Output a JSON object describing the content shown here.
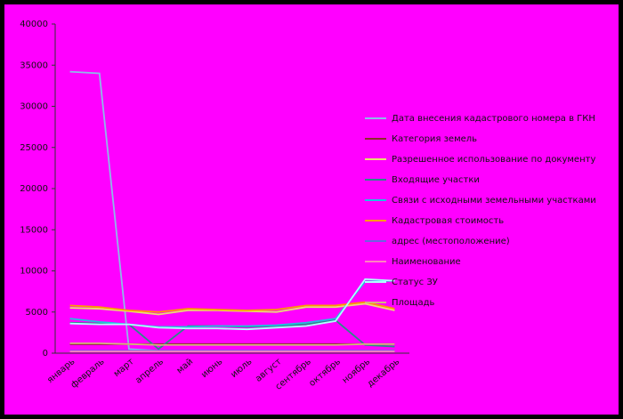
{
  "chart_data": {
    "type": "line",
    "categories": [
      "январь",
      "февраль",
      "март",
      "апрель",
      "май",
      "июнь",
      "июль",
      "август",
      "сентябрь",
      "октябрь",
      "ноябрь",
      "декабрь"
    ],
    "ylim": [
      0,
      40000
    ],
    "yticks": [
      0,
      5000,
      10000,
      15000,
      20000,
      25000,
      30000,
      35000,
      40000
    ],
    "grid": false,
    "legend": "right",
    "series": [
      {
        "name": "Дата внесения кадастрового номера в ГКН",
        "color": "#8fb8e8",
        "values": [
          34200,
          34000,
          500,
          300,
          300,
          300,
          300,
          300,
          300,
          300,
          300,
          300
        ]
      },
      {
        "name": "Категория земель",
        "color": "#8b2b2b",
        "values": [
          1100,
          1100,
          1100,
          1100,
          1100,
          1100,
          1100,
          1100,
          1100,
          1100,
          1100,
          1100
        ]
      },
      {
        "name": "Разрешенное использование по документу",
        "color": "#e8e070",
        "values": [
          5500,
          5400,
          5100,
          4700,
          5200,
          5200,
          5100,
          5000,
          5600,
          5600,
          6000,
          5200
        ]
      },
      {
        "name": "Входящие участки",
        "color": "#2a8a8a",
        "values": [
          3700,
          3600,
          3500,
          500,
          3300,
          3300,
          3200,
          3300,
          3500,
          4000,
          1000,
          800
        ]
      },
      {
        "name": "Связи с исходными земельными участками",
        "color": "#20c0e0",
        "values": [
          4200,
          3800,
          3500,
          3200,
          3200,
          3300,
          3300,
          3400,
          3700,
          4200,
          8700,
          8800
        ]
      },
      {
        "name": "Кадастровая стоимость",
        "color": "#ff9900",
        "values": [
          5800,
          5600,
          5200,
          5000,
          5400,
          5300,
          5200,
          5300,
          5800,
          5800,
          6200,
          5400
        ]
      },
      {
        "name": "адрес (местоположение)",
        "color": "#7060e0",
        "values": [
          300,
          300,
          300,
          300,
          300,
          300,
          300,
          300,
          300,
          300,
          300,
          300
        ]
      },
      {
        "name": "Наименование",
        "color": "#ff80c0",
        "values": [
          200,
          200,
          200,
          200,
          200,
          200,
          200,
          200,
          200,
          200,
          200,
          200
        ]
      },
      {
        "name": "Статус ЗУ",
        "color": "#b0ffff",
        "values": [
          3600,
          3500,
          3500,
          3100,
          3000,
          3000,
          2900,
          3100,
          3300,
          3900,
          9000,
          8800
        ]
      },
      {
        "name": "Площадь",
        "color": "#d8b080",
        "values": [
          1200,
          1200,
          1100,
          1000,
          1000,
          1000,
          1000,
          1000,
          1000,
          1000,
          1100,
          1100
        ]
      }
    ]
  }
}
